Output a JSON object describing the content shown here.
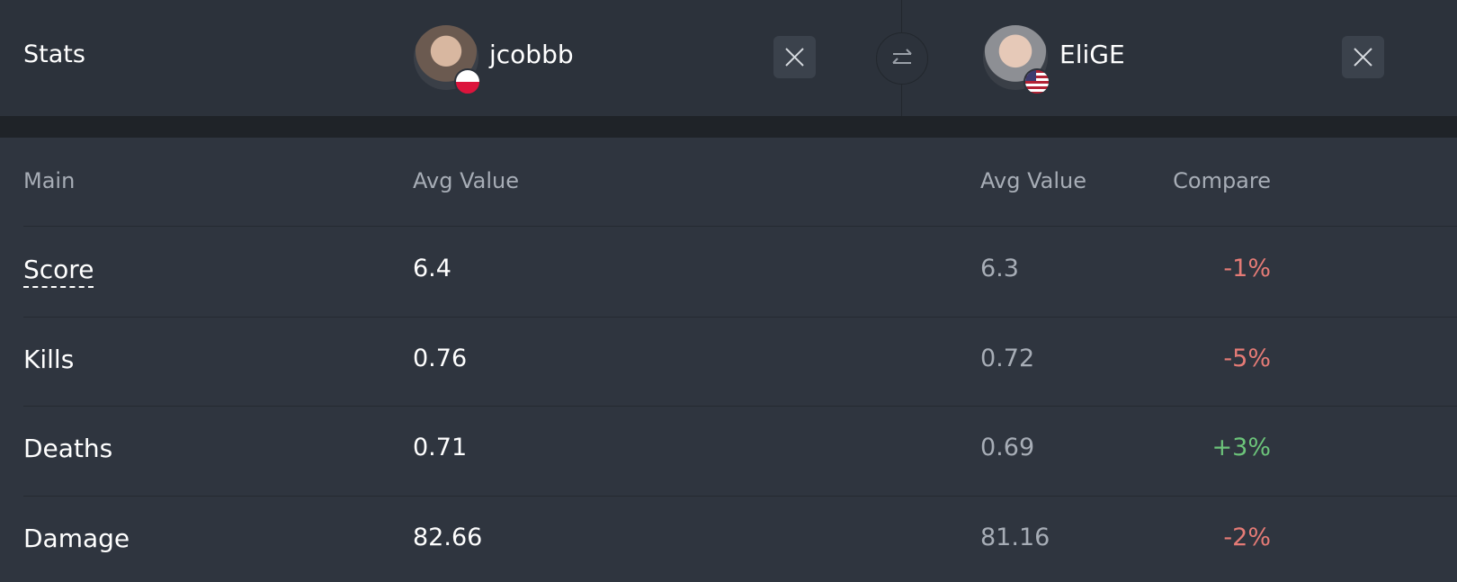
{
  "header": {
    "title": "Stats",
    "players": [
      {
        "name": "jcobbb"
      },
      {
        "name": "EliGE"
      }
    ]
  },
  "table": {
    "columns": [
      "Main",
      "Avg Value",
      "Avg Value",
      "Compare"
    ],
    "rows": [
      {
        "cells": [
          "Score",
          "6.4",
          "6.3",
          "-1%"
        ],
        "compare_color": "#e57b76"
      },
      {
        "cells": [
          "Kills",
          "0.76",
          "0.72",
          "-5%"
        ],
        "compare_color": "#e57b76"
      },
      {
        "cells": [
          "Deaths",
          "0.71",
          "0.69",
          "+3%"
        ],
        "compare_color": "#6cc47a"
      },
      {
        "cells": [
          "Damage",
          "82.66",
          "81.16",
          "-2%"
        ],
        "compare_color": "#e57b76"
      }
    ]
  }
}
